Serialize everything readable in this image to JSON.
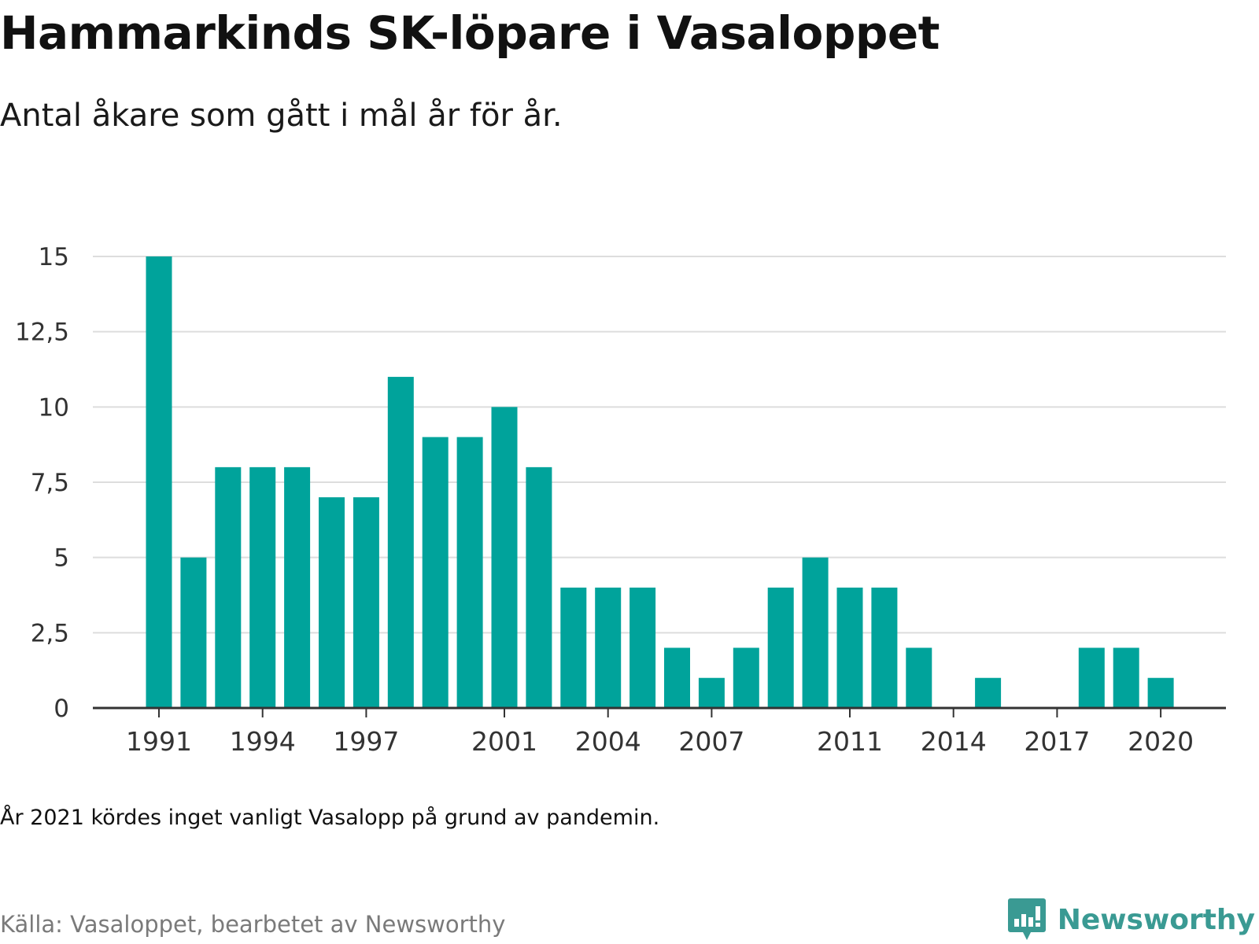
{
  "title": "Hammarkinds SK-löpare i Vasaloppet",
  "subtitle": "Antal åkare som gått i mål år för år.",
  "note": "År 2021 kördes inget vanligt Vasalopp på grund av pandemin.",
  "source": "Källa: Vasaloppet, bearbetet av Newsworthy",
  "brand": {
    "name": "Newsworthy",
    "color": "#3a9a93",
    "icon": "newsworthy-logo-icon"
  },
  "colors": {
    "bar": "#00a39b",
    "grid": "#dddddd",
    "axis": "#333333"
  },
  "chart_data": {
    "type": "bar",
    "categories": [
      1991,
      1992,
      1993,
      1994,
      1995,
      1996,
      1997,
      1998,
      1999,
      2000,
      2001,
      2002,
      2003,
      2004,
      2005,
      2006,
      2007,
      2008,
      2009,
      2010,
      2011,
      2012,
      2013,
      2014,
      2015,
      2016,
      2017,
      2018,
      2019,
      2020
    ],
    "values": [
      15,
      5,
      8,
      8,
      8,
      7,
      7,
      11,
      9,
      9,
      10,
      8,
      4,
      4,
      4,
      2,
      1,
      2,
      4,
      5,
      4,
      4,
      2,
      0,
      1,
      0,
      0,
      2,
      2,
      1
    ],
    "x_tick_labels": [
      "1991",
      "1994",
      "1997",
      "2001",
      "2004",
      "2007",
      "2011",
      "2014",
      "2017",
      "2020"
    ],
    "y_ticks": [
      0,
      2.5,
      5,
      7.5,
      10,
      12.5,
      15
    ],
    "y_tick_labels": [
      "0",
      "2,5",
      "5",
      "7,5",
      "10",
      "12,5",
      "15"
    ],
    "ylim": [
      0,
      15
    ],
    "grid": true,
    "legend": false
  }
}
